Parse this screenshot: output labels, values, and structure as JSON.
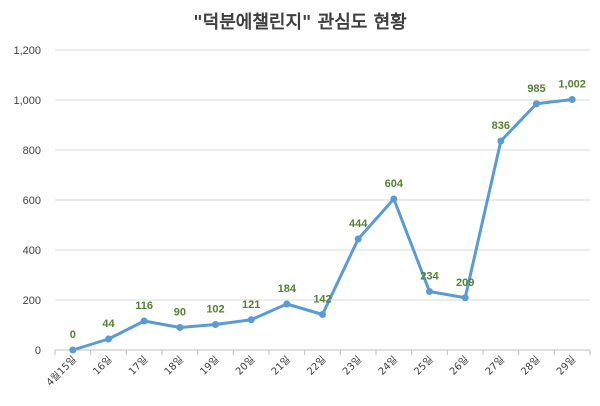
{
  "chart_data": {
    "type": "line",
    "title": "\"덕분에챌린지\" 관심도 현황",
    "xlabel": "",
    "ylabel": "",
    "ylim": [
      0,
      1200
    ],
    "yticks": [
      "0",
      "200",
      "400",
      "600",
      "800",
      "1,000",
      "1,200"
    ],
    "grid": true,
    "categories": [
      "4월15일",
      "16일",
      "17일",
      "18일",
      "19일",
      "20일",
      "21일",
      "22일",
      "23일",
      "24일",
      "25일",
      "26일",
      "27일",
      "28일",
      "29일"
    ],
    "values": [
      0,
      44,
      116,
      90,
      102,
      121,
      184,
      142,
      444,
      604,
      234,
      209,
      836,
      985,
      1002
    ],
    "data_labels": [
      "0",
      "44",
      "116",
      "90",
      "102",
      "121",
      "184",
      "142",
      "444",
      "604",
      "234",
      "209",
      "836",
      "985",
      "1,002"
    ],
    "line_color": "#5B9BD5",
    "label_color": "#548235"
  }
}
